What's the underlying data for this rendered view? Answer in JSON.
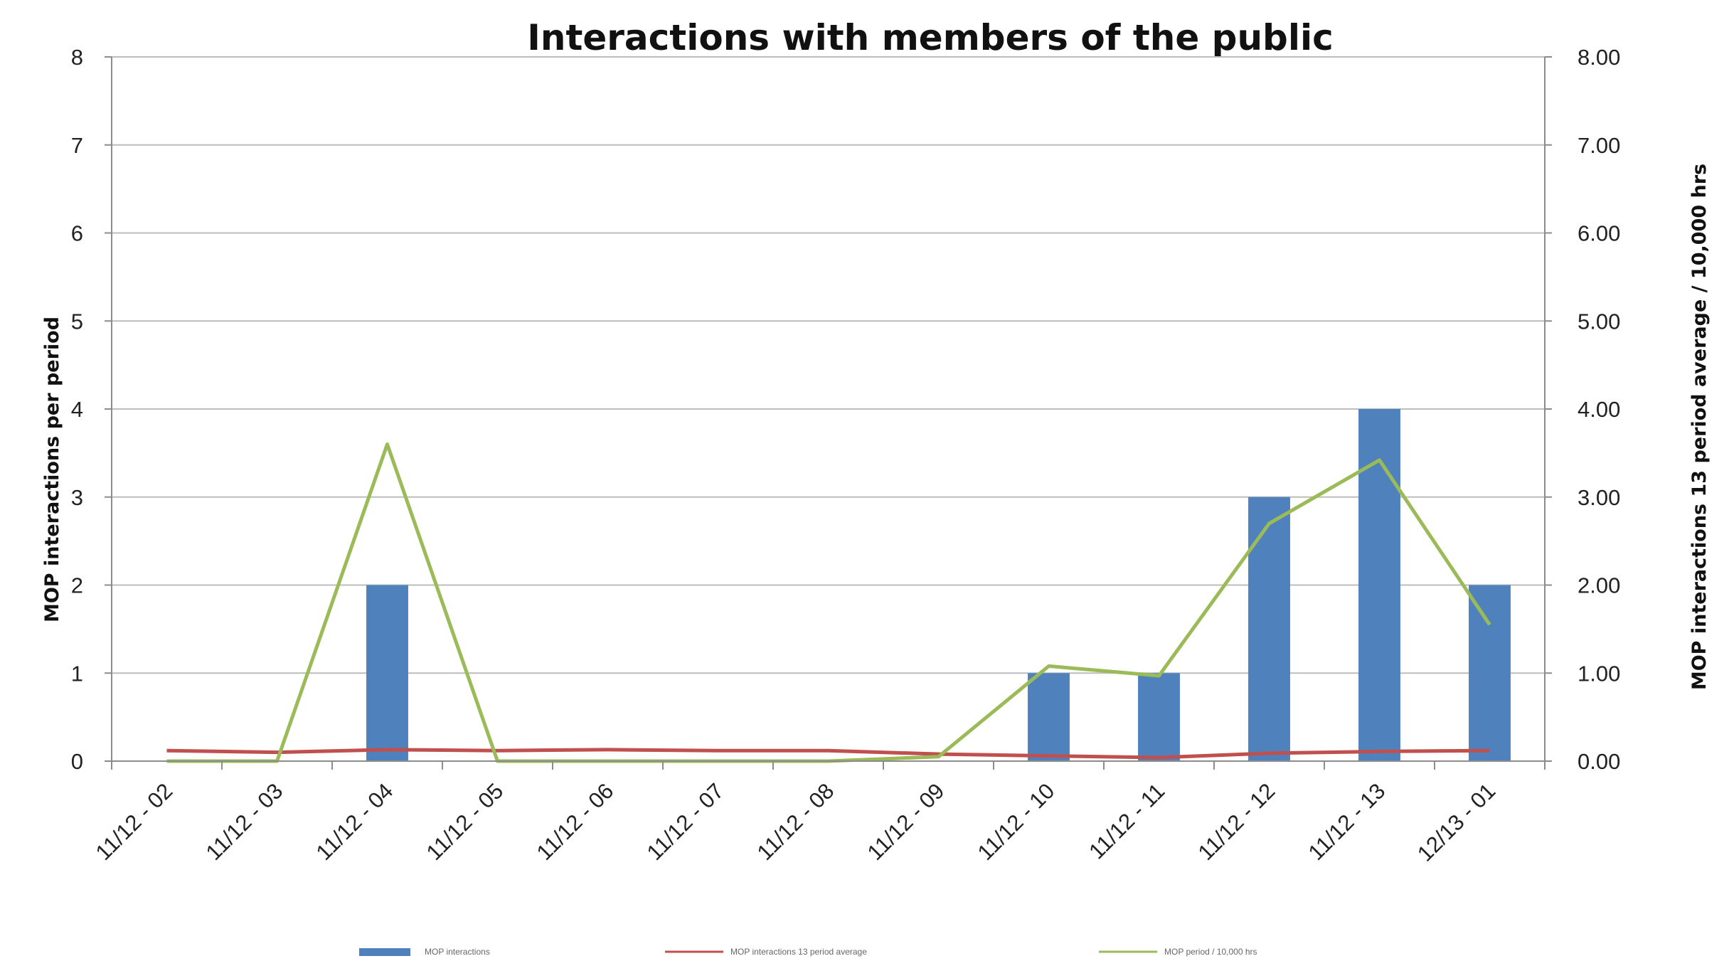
{
  "chart_data": {
    "type": "bar",
    "title": "Interactions with members of the public",
    "ylabel_left": "MOP interactions per period",
    "ylabel_right": "MOP interactions 13 period average / 10,000 hrs",
    "categories": [
      "11/12 - 02",
      "11/12 - 03",
      "11/12 - 04",
      "11/12 - 05",
      "11/12 - 06",
      "11/12 - 07",
      "11/12 - 08",
      "11/12 - 09",
      "11/12 - 10",
      "11/12 - 11",
      "11/12 - 12",
      "11/12 - 13",
      "12/13 - 01"
    ],
    "ylim_left": [
      0,
      8
    ],
    "ylim_right": [
      0,
      8
    ],
    "yticks_left": [
      "0",
      "1",
      "2",
      "3",
      "4",
      "5",
      "6",
      "7",
      "8"
    ],
    "yticks_right": [
      "0.00",
      "1.00",
      "2.00",
      "3.00",
      "4.00",
      "5.00",
      "6.00",
      "7.00",
      "8.00"
    ],
    "grid": true,
    "legend_position": "bottom",
    "series": [
      {
        "name": "MOP interactions",
        "kind": "bar",
        "axis": "left",
        "color": "#4F81BD",
        "values": [
          0,
          0,
          2,
          0,
          0,
          0,
          0,
          0,
          1,
          1,
          3,
          4,
          2
        ]
      },
      {
        "name": "MOP interactions 13 period average",
        "kind": "line",
        "axis": "right",
        "color": "#C0504D",
        "values": [
          0.12,
          0.1,
          0.13,
          0.12,
          0.13,
          0.12,
          0.12,
          0.08,
          0.06,
          0.04,
          0.09,
          0.11,
          0.12
        ]
      },
      {
        "name": "MOP period / 10,000 hrs",
        "kind": "line",
        "axis": "right",
        "color": "#9BBB59",
        "values": [
          0,
          0,
          3.6,
          0,
          0,
          0,
          0,
          0.05,
          1.08,
          0.97,
          2.7,
          3.42,
          1.55
        ]
      }
    ]
  }
}
